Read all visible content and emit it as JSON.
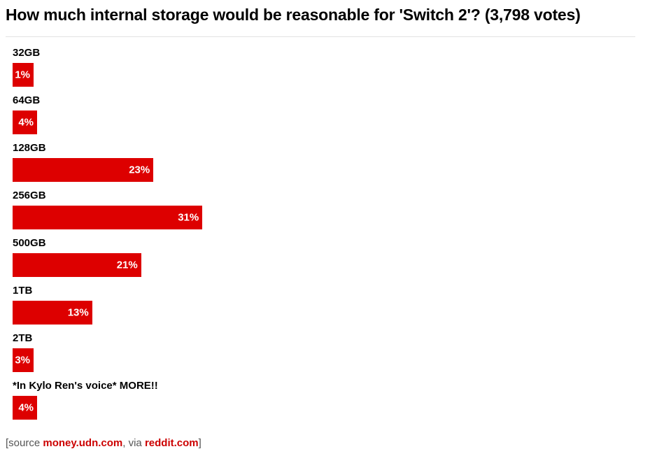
{
  "chart_data": {
    "type": "bar",
    "orientation": "horizontal",
    "title": "How much internal storage would be reasonable for 'Switch 2'? (3,798 votes)",
    "categories": [
      "32GB",
      "64GB",
      "128GB",
      "256GB",
      "500GB",
      "1TB",
      "2TB",
      "*In Kylo Ren's voice* MORE!!"
    ],
    "values": [
      1,
      4,
      23,
      31,
      21,
      13,
      3,
      4
    ],
    "value_labels": [
      "1%",
      "4%",
      "23%",
      "31%",
      "21%",
      "13%",
      "3%",
      "4%"
    ],
    "xlim": [
      0,
      100
    ],
    "bar_color": "#dd0000",
    "grid": false,
    "legend": "none"
  },
  "source": {
    "prefix": "[source ",
    "link1": "money.udn.com",
    "middle": ", via ",
    "link2": "reddit.com",
    "suffix": "]"
  }
}
